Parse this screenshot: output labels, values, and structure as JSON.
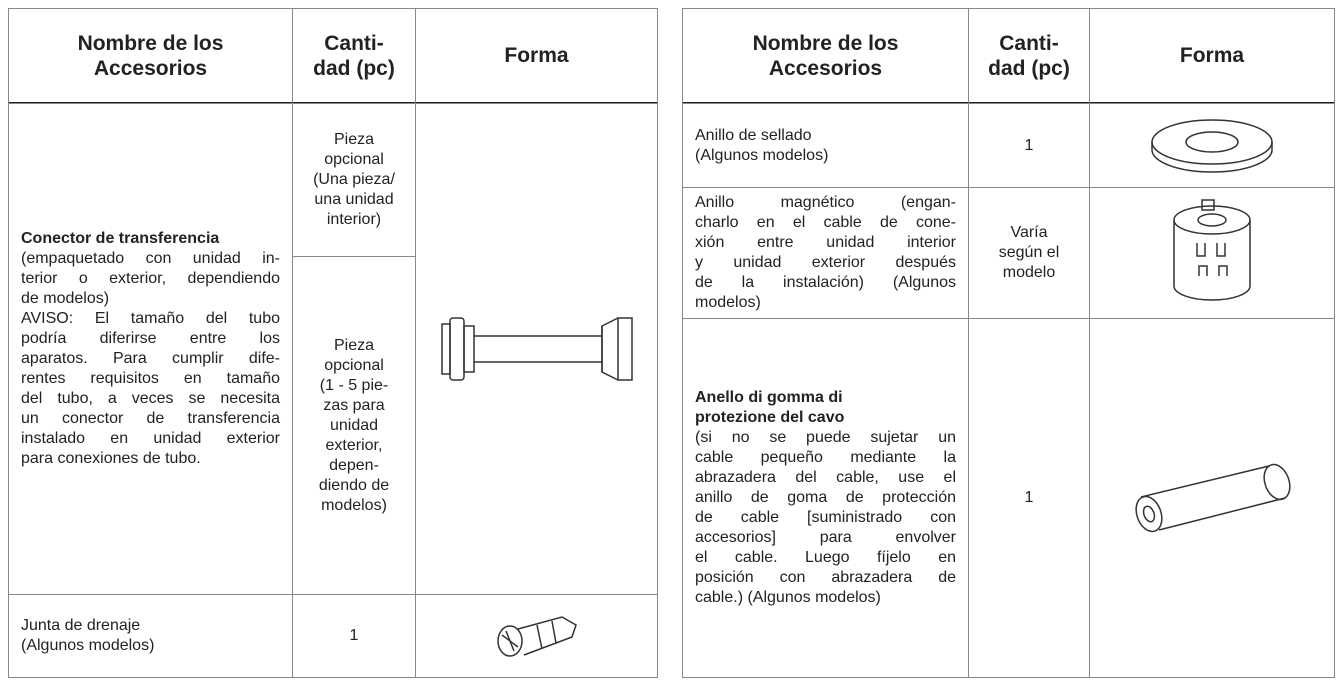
{
  "left_table": {
    "headers": [
      [
        "Nombre de los",
        "Accesorios"
      ],
      [
        "Canti-",
        "dad (pc)"
      ],
      [
        "Forma"
      ]
    ],
    "rows": [
      {
        "name_bold": [
          "Conector de transferencia"
        ],
        "name": [
          "(empaquetado con unidad in-",
          "terior o exterior, dependiendo",
          "de modelos)",
          "AVISO: El tamaño del tubo",
          "podría diferirse entre los",
          "aparatos. Para cumplir dife-",
          "rentes requisitos en tamaño",
          "del tubo, a veces se necesita",
          "un conector de transferencia",
          "instalado en unidad exterior",
          "para conexiones de tubo."
        ],
        "quantity": [
          [
            "Pieza",
            "opcional",
            "(Una pieza/",
            "una unidad",
            "interior)"
          ],
          [
            "Pieza",
            "opcional",
            "(1 - 5 pie-",
            "zas para",
            "unidad",
            "exterior,",
            "depen-",
            "diendo de",
            "modelos)"
          ]
        ]
      },
      {
        "name": [
          "Junta de drenaje",
          "(Algunos modelos)"
        ],
        "quantity": [
          "1"
        ]
      }
    ]
  },
  "right_table": {
    "headers": [
      [
        "Nombre de los",
        "Accesorios"
      ],
      [
        "Canti-",
        "dad (pc)"
      ],
      [
        "Forma"
      ]
    ],
    "rows": [
      {
        "name": [
          "Anillo de sellado",
          "(Algunos modelos)"
        ],
        "quantity": [
          "1"
        ]
      },
      {
        "name": [
          "Anillo magnético (engan-",
          "charlo en el cable de cone-",
          "xión entre unidad interior",
          "y unidad exterior después",
          "de la instalación) (Algunos",
          "modelos)"
        ],
        "quantity": [
          "Varía",
          "según el",
          "modelo"
        ]
      },
      {
        "name_bold": [
          "Anello di gomma di",
          "protezione del cavo"
        ],
        "name": [
          "(si no se puede sujetar un",
          "cable pequeño mediante la",
          "abrazadera del cable, use el",
          "anillo de goma de protección",
          "de cable [suministrado con",
          "accesorios] para envolver",
          "el cable. Luego fíjelo en",
          "posición con abrazadera de",
          "cable.) (Algunos modelos)"
        ],
        "quantity": [
          "1"
        ]
      }
    ]
  }
}
